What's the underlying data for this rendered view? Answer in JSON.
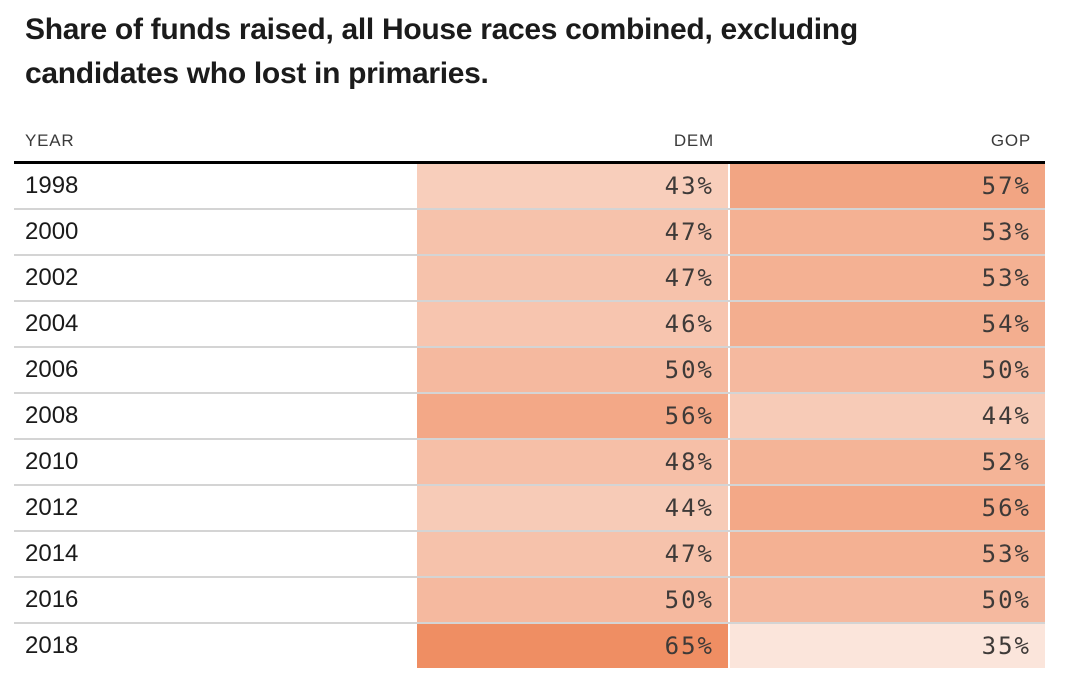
{
  "title": "Share of funds raised, all House races combined, excluding candidates who lost in primaries.",
  "table": {
    "headers": {
      "year": "YEAR",
      "dem": "DEM",
      "gop": "GOP"
    }
  },
  "chart_data": {
    "type": "table",
    "subtype": "heatmap-table",
    "title": "Share of funds raised, all House races combined, excluding candidates who lost in primaries.",
    "columns": [
      "YEAR",
      "DEM",
      "GOP"
    ],
    "value_suffix": "%",
    "rows": [
      {
        "year": "1998",
        "dem": 43,
        "gop": 57,
        "dem_label": "43%",
        "gop_label": "57%",
        "dem_color": "#f8cebb",
        "gop_color": "#f2a583"
      },
      {
        "year": "2000",
        "dem": 47,
        "gop": 53,
        "dem_label": "47%",
        "gop_label": "53%",
        "dem_color": "#f6c2ab",
        "gop_color": "#f4b193"
      },
      {
        "year": "2002",
        "dem": 47,
        "gop": 53,
        "dem_label": "47%",
        "gop_label": "53%",
        "dem_color": "#f6c2ab",
        "gop_color": "#f4b193"
      },
      {
        "year": "2004",
        "dem": 46,
        "gop": 54,
        "dem_label": "46%",
        "gop_label": "54%",
        "dem_color": "#f7c5af",
        "gop_color": "#f3ae8f"
      },
      {
        "year": "2006",
        "dem": 50,
        "gop": 50,
        "dem_label": "50%",
        "gop_label": "50%",
        "dem_color": "#f5b99f",
        "gop_color": "#f5b99f"
      },
      {
        "year": "2008",
        "dem": 56,
        "gop": 44,
        "dem_label": "56%",
        "gop_label": "44%",
        "dem_color": "#f3a887",
        "gop_color": "#f7cbb7"
      },
      {
        "year": "2010",
        "dem": 48,
        "gop": 52,
        "dem_label": "48%",
        "gop_label": "52%",
        "dem_color": "#f6bfa7",
        "gop_color": "#f4b497"
      },
      {
        "year": "2012",
        "dem": 44,
        "gop": 56,
        "dem_label": "44%",
        "gop_label": "56%",
        "dem_color": "#f7cbb7",
        "gop_color": "#f3a887"
      },
      {
        "year": "2014",
        "dem": 47,
        "gop": 53,
        "dem_label": "47%",
        "gop_label": "53%",
        "dem_color": "#f6c2ab",
        "gop_color": "#f4b193"
      },
      {
        "year": "2016",
        "dem": 50,
        "gop": 50,
        "dem_label": "50%",
        "gop_label": "50%",
        "dem_color": "#f5b99f",
        "gop_color": "#f5b99f"
      },
      {
        "year": "2018",
        "dem": 65,
        "gop": 35,
        "dem_label": "65%",
        "gop_label": "35%",
        "dem_color": "#ef8e63",
        "gop_color": "#fbe5db"
      }
    ],
    "color_scale": {
      "min_value": 35,
      "max_value": 65,
      "min_color": "#fbe5db",
      "max_color": "#ef8e63"
    },
    "layout": {
      "value_alignment": "right",
      "legend": "none",
      "grid": "row-separators",
      "header_rule_color": "#000000",
      "row_separator_color": "#d4d4d4"
    }
  }
}
